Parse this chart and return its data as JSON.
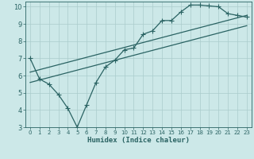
{
  "xlabel": "Humidex (Indice chaleur)",
  "bg_color": "#cce8e8",
  "line_color": "#2a6363",
  "grid_color": "#aacccc",
  "xlim": [
    -0.5,
    23.5
  ],
  "ylim": [
    3,
    10.3
  ],
  "xticks": [
    0,
    1,
    2,
    3,
    4,
    5,
    6,
    7,
    8,
    9,
    10,
    11,
    12,
    13,
    14,
    15,
    16,
    17,
    18,
    19,
    20,
    21,
    22,
    23
  ],
  "yticks": [
    3,
    4,
    5,
    6,
    7,
    8,
    9,
    10
  ],
  "line1_x": [
    0,
    1,
    2,
    3,
    4,
    5,
    6,
    7,
    8,
    9,
    10,
    11,
    12,
    13,
    14,
    15,
    16,
    17,
    18,
    19,
    20,
    21,
    22,
    23
  ],
  "line1_y": [
    7.0,
    5.8,
    5.5,
    4.9,
    4.1,
    3.0,
    4.3,
    5.6,
    6.5,
    6.9,
    7.5,
    7.6,
    8.4,
    8.6,
    9.2,
    9.2,
    9.7,
    10.1,
    10.1,
    10.05,
    10.0,
    9.6,
    9.5,
    9.4
  ],
  "line2_x": [
    0,
    23
  ],
  "line2_y": [
    6.2,
    9.5
  ],
  "line3_x": [
    0,
    23
  ],
  "line3_y": [
    5.6,
    8.9
  ],
  "markersize": 2.5,
  "linewidth": 0.9
}
